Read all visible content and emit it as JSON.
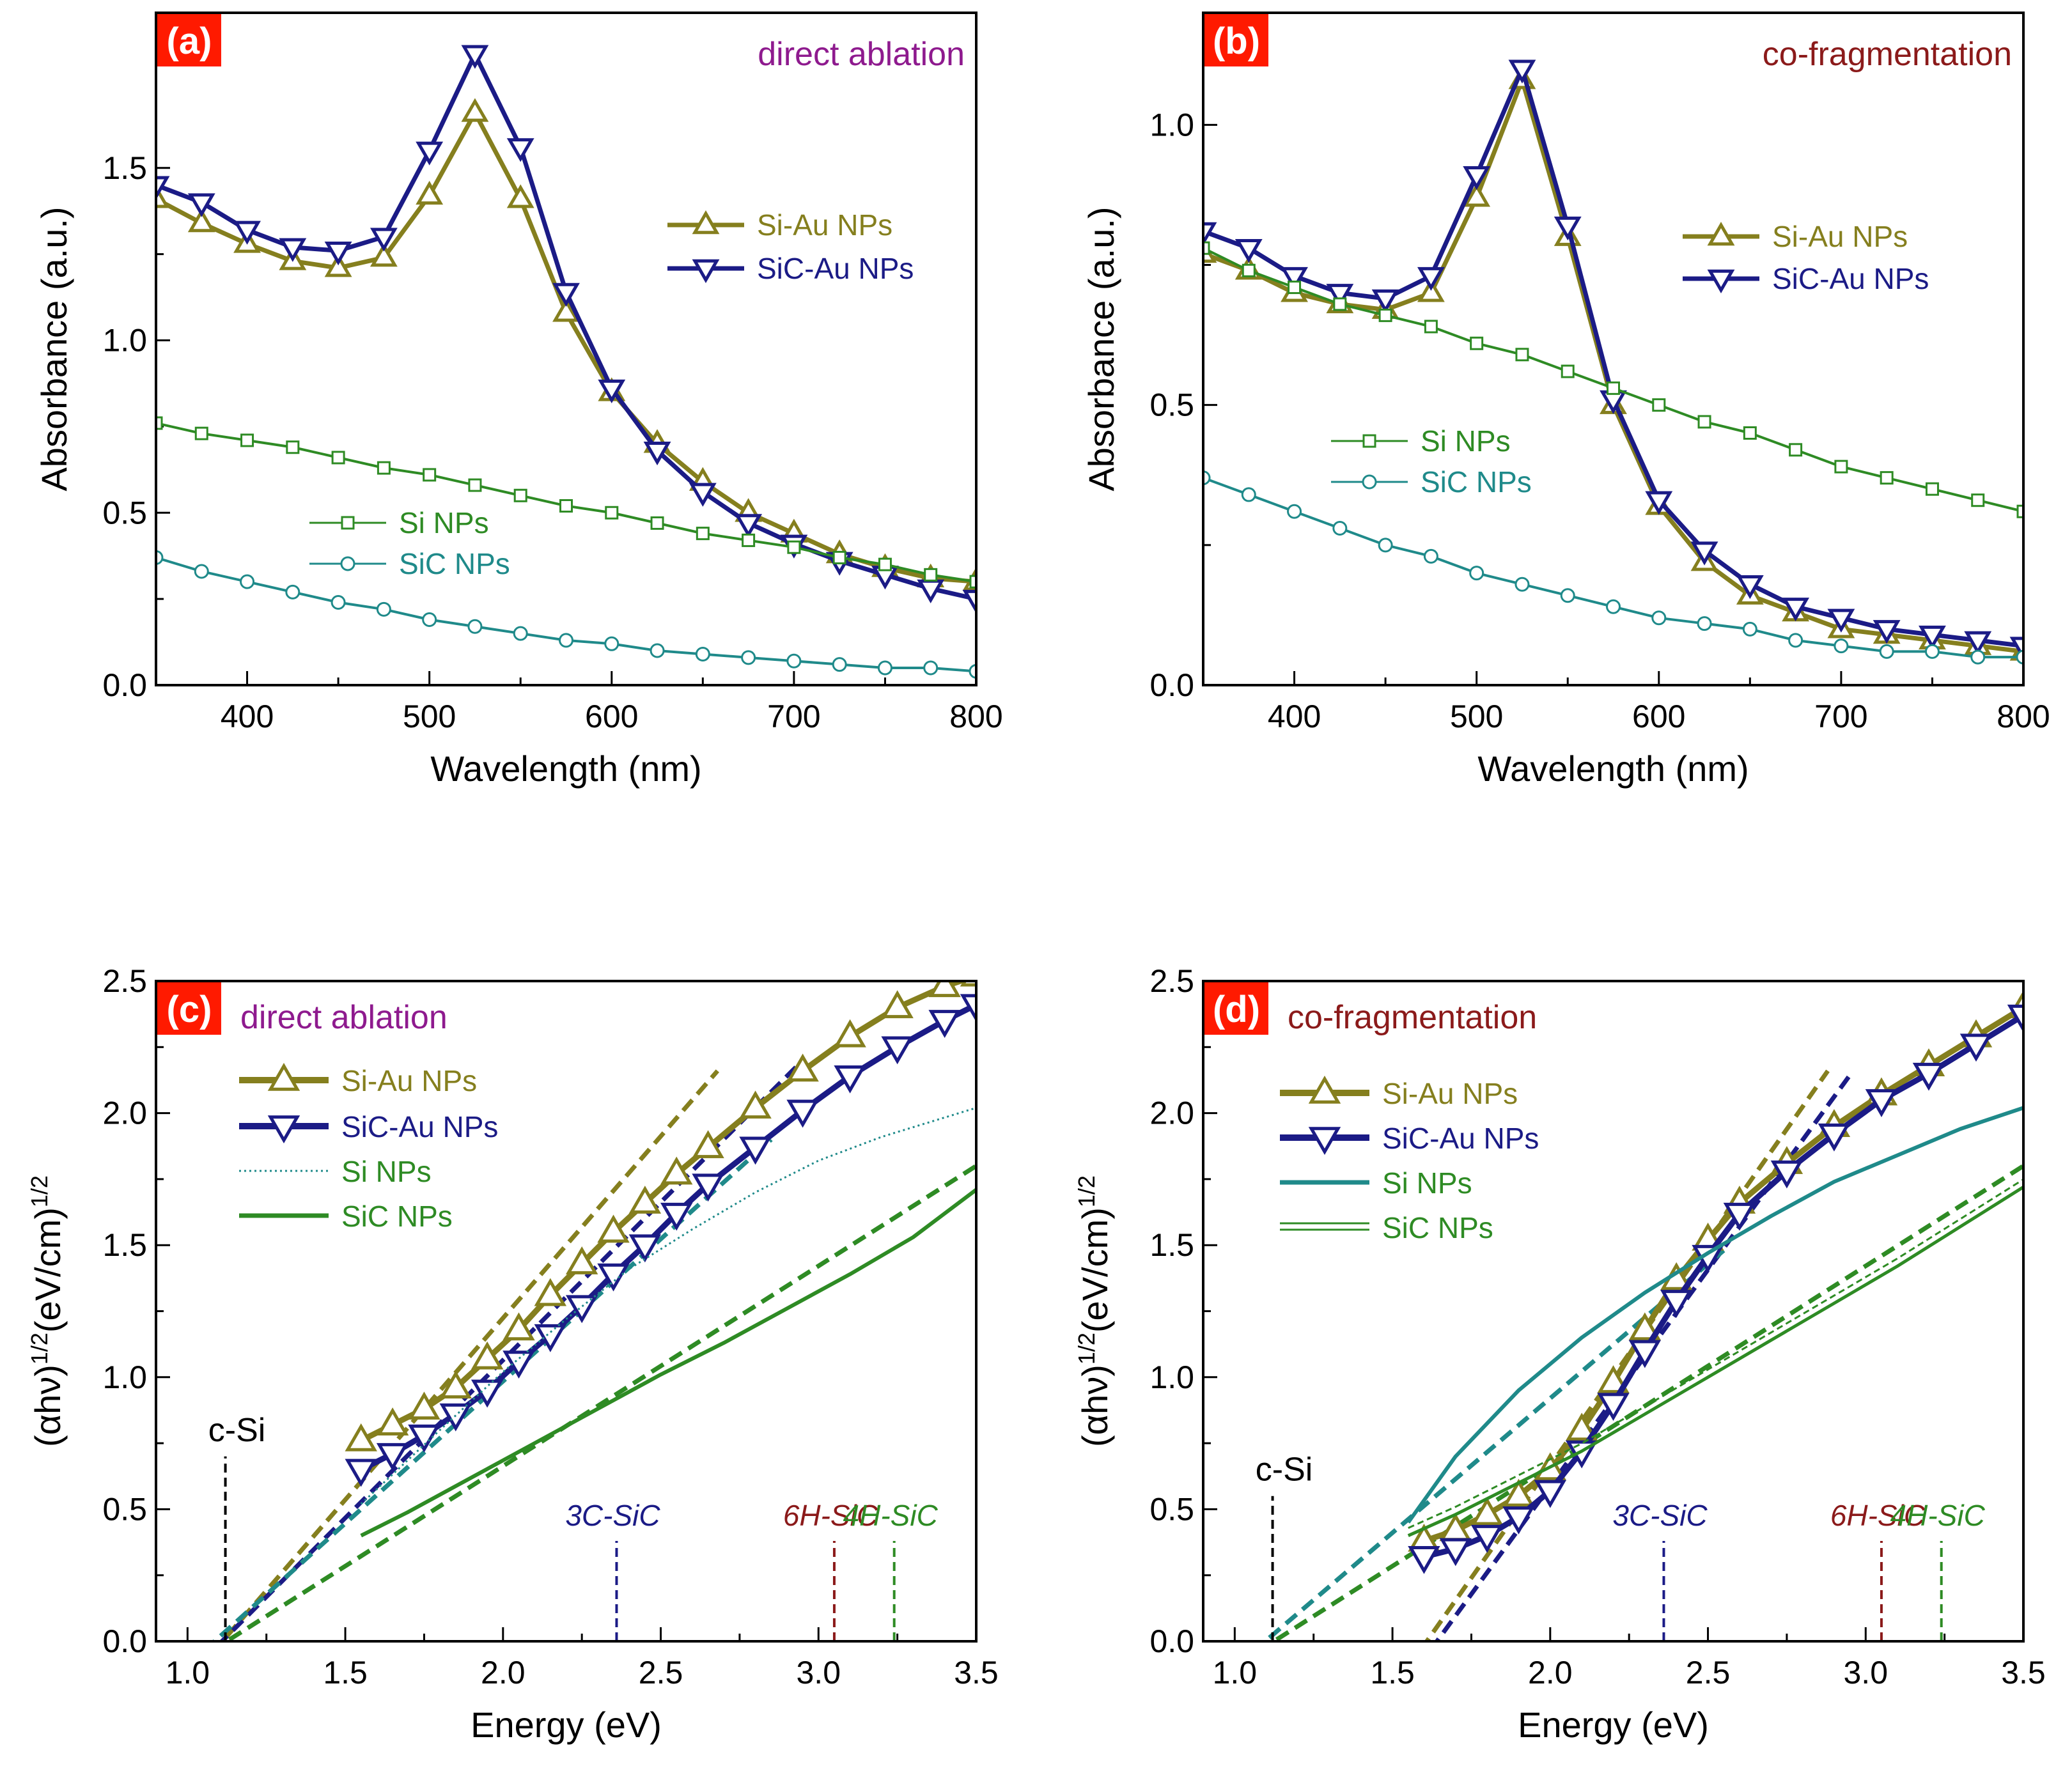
{
  "colors": {
    "si_au": "#857f1e",
    "sic_au": "#1b1b86",
    "si": "#2e8b24",
    "sic": "#1f8a8a",
    "label_bg": "#ff1a00",
    "direct": "#8e1a8e",
    "cofrag": "#8b1a1a",
    "c3": "#1b1b86",
    "h6": "#8b1a1a",
    "h4": "#2e8b24"
  },
  "chart_data": [
    {
      "id": "a",
      "type": "line",
      "panel_label": "(a)",
      "title": "direct ablation",
      "xlabel": "Wavelength (nm)",
      "ylabel": "Absorbance (a.u.)",
      "xlim": [
        350,
        800
      ],
      "ylim": [
        0,
        1.95
      ],
      "xticks": [
        400,
        500,
        600,
        700,
        800
      ],
      "xtick_labels": [
        "400",
        "500",
        "600",
        "700",
        "800"
      ],
      "yticks": [
        0,
        0.5,
        1.0,
        1.5
      ],
      "ytick_labels": [
        "0.0",
        "0.5",
        "1.0",
        "1.5"
      ],
      "legend": [
        {
          "name": "Si-Au NPs",
          "marker": "triangle-up",
          "color_key": "si_au"
        },
        {
          "name": "SiC-Au NPs",
          "marker": "triangle-down",
          "color_key": "sic_au"
        },
        {
          "name": "Si NPs",
          "marker": "square",
          "color_key": "si"
        },
        {
          "name": "SiC NPs",
          "marker": "circle",
          "color_key": "sic"
        }
      ],
      "series": [
        {
          "name": "Si-Au NPs",
          "marker": "triangle-up",
          "color_key": "si_au",
          "x": [
            350,
            375,
            400,
            425,
            450,
            475,
            500,
            525,
            550,
            575,
            600,
            625,
            650,
            675,
            700,
            725,
            750,
            775,
            800
          ],
          "y": [
            1.41,
            1.34,
            1.28,
            1.23,
            1.21,
            1.24,
            1.42,
            1.66,
            1.41,
            1.08,
            0.85,
            0.7,
            0.59,
            0.5,
            0.44,
            0.38,
            0.34,
            0.31,
            0.3
          ]
        },
        {
          "name": "SiC-Au NPs",
          "marker": "triangle-down",
          "color_key": "sic_au",
          "x": [
            350,
            375,
            400,
            425,
            450,
            475,
            500,
            525,
            550,
            575,
            600,
            625,
            650,
            675,
            700,
            725,
            750,
            775,
            800
          ],
          "y": [
            1.45,
            1.4,
            1.32,
            1.27,
            1.26,
            1.3,
            1.55,
            1.83,
            1.56,
            1.14,
            0.86,
            0.68,
            0.56,
            0.47,
            0.41,
            0.36,
            0.32,
            0.28,
            0.25
          ]
        },
        {
          "name": "Si NPs",
          "marker": "square",
          "color_key": "si",
          "x": [
            350,
            375,
            400,
            425,
            450,
            475,
            500,
            525,
            550,
            575,
            600,
            625,
            650,
            675,
            700,
            725,
            750,
            775,
            800
          ],
          "y": [
            0.76,
            0.73,
            0.71,
            0.69,
            0.66,
            0.63,
            0.61,
            0.58,
            0.55,
            0.52,
            0.5,
            0.47,
            0.44,
            0.42,
            0.4,
            0.37,
            0.35,
            0.32,
            0.3
          ]
        },
        {
          "name": "SiC NPs",
          "marker": "circle",
          "color_key": "sic",
          "x": [
            350,
            375,
            400,
            425,
            450,
            475,
            500,
            525,
            550,
            575,
            600,
            625,
            650,
            675,
            700,
            725,
            750,
            775,
            800
          ],
          "y": [
            0.37,
            0.33,
            0.3,
            0.27,
            0.24,
            0.22,
            0.19,
            0.17,
            0.15,
            0.13,
            0.12,
            0.1,
            0.09,
            0.08,
            0.07,
            0.06,
            0.05,
            0.05,
            0.04
          ]
        }
      ]
    },
    {
      "id": "b",
      "type": "line",
      "panel_label": "(b)",
      "title": "co-fragmentation",
      "xlabel": "Wavelength (nm)",
      "ylabel": "Absorbance (a.u.)",
      "xlim": [
        350,
        800
      ],
      "ylim": [
        0,
        1.2
      ],
      "xticks": [
        400,
        500,
        600,
        700,
        800
      ],
      "xtick_labels": [
        "400",
        "500",
        "600",
        "700",
        "800"
      ],
      "yticks": [
        0,
        0.5,
        1.0
      ],
      "ytick_labels": [
        "0.0",
        "0.5",
        "1.0"
      ],
      "legend": [
        {
          "name": "Si-Au NPs",
          "marker": "triangle-up",
          "color_key": "si_au"
        },
        {
          "name": "SiC-Au NPs",
          "marker": "triangle-down",
          "color_key": "sic_au"
        },
        {
          "name": "Si NPs",
          "marker": "square",
          "color_key": "si"
        },
        {
          "name": "SiC NPs",
          "marker": "circle",
          "color_key": "sic"
        }
      ],
      "series": [
        {
          "name": "Si-Au NPs",
          "marker": "triangle-up",
          "color_key": "si_au",
          "x": [
            350,
            375,
            400,
            425,
            450,
            475,
            500,
            525,
            550,
            575,
            600,
            625,
            650,
            675,
            700,
            725,
            750,
            775,
            800
          ],
          "y": [
            0.77,
            0.74,
            0.7,
            0.68,
            0.67,
            0.7,
            0.87,
            1.08,
            0.8,
            0.5,
            0.32,
            0.22,
            0.16,
            0.13,
            0.1,
            0.09,
            0.08,
            0.07,
            0.06
          ]
        },
        {
          "name": "SiC-Au NPs",
          "marker": "triangle-down",
          "color_key": "sic_au",
          "x": [
            350,
            375,
            400,
            425,
            450,
            475,
            500,
            525,
            550,
            575,
            600,
            625,
            650,
            675,
            700,
            725,
            750,
            775,
            800
          ],
          "y": [
            0.81,
            0.78,
            0.73,
            0.7,
            0.69,
            0.73,
            0.91,
            1.1,
            0.82,
            0.51,
            0.33,
            0.24,
            0.18,
            0.14,
            0.12,
            0.1,
            0.09,
            0.08,
            0.07
          ]
        },
        {
          "name": "Si NPs",
          "marker": "square",
          "color_key": "si",
          "x": [
            350,
            375,
            400,
            425,
            450,
            475,
            500,
            525,
            550,
            575,
            600,
            625,
            650,
            675,
            700,
            725,
            750,
            775,
            800
          ],
          "y": [
            0.78,
            0.74,
            0.71,
            0.68,
            0.66,
            0.64,
            0.61,
            0.59,
            0.56,
            0.53,
            0.5,
            0.47,
            0.45,
            0.42,
            0.39,
            0.37,
            0.35,
            0.33,
            0.31
          ]
        },
        {
          "name": "SiC NPs",
          "marker": "circle",
          "color_key": "sic",
          "x": [
            350,
            375,
            400,
            425,
            450,
            475,
            500,
            525,
            550,
            575,
            600,
            625,
            650,
            675,
            700,
            725,
            750,
            775,
            800
          ],
          "y": [
            0.37,
            0.34,
            0.31,
            0.28,
            0.25,
            0.23,
            0.2,
            0.18,
            0.16,
            0.14,
            0.12,
            0.11,
            0.1,
            0.08,
            0.07,
            0.06,
            0.06,
            0.05,
            0.05
          ]
        }
      ]
    },
    {
      "id": "c",
      "type": "line",
      "panel_label": "(c)",
      "title": "direct ablation",
      "xlabel": "Energy (eV)",
      "ylabel": "(αhν)1/2(eV/cm)1/2",
      "ylabel_parts": [
        "(αhν)",
        "1/2",
        "(eV/cm)",
        "1/2"
      ],
      "xlim": [
        0.9,
        3.5
      ],
      "ylim": [
        0,
        2.5
      ],
      "xticks": [
        1.0,
        1.5,
        2.0,
        2.5,
        3.0,
        3.5
      ],
      "xtick_labels": [
        "1.0",
        "1.5",
        "2.0",
        "2.5",
        "3.0",
        "3.5"
      ],
      "yticks": [
        0,
        0.5,
        1.0,
        1.5,
        2.0,
        2.5
      ],
      "ytick_labels": [
        "0.0",
        "0.5",
        "1.0",
        "1.5",
        "2.0",
        "2.5"
      ],
      "legend": [
        {
          "name": "Si-Au NPs",
          "style": "tri-up-line",
          "color_key": "si_au"
        },
        {
          "name": "SiC-Au NPs",
          "style": "tri-down-line",
          "color_key": "sic_au"
        },
        {
          "name": "Si NPs",
          "style": "dotted",
          "color_key": "sic"
        },
        {
          "name": "SiC NPs",
          "style": "solid",
          "color_key": "si"
        }
      ],
      "series": [
        {
          "name": "Si-Au NPs",
          "marker": "triangle-up",
          "color_key": "si_au",
          "x": [
            1.55,
            1.65,
            1.75,
            1.85,
            1.95,
            2.05,
            2.15,
            2.25,
            2.35,
            2.45,
            2.55,
            2.65,
            2.8,
            2.95,
            3.1,
            3.25,
            3.4,
            3.5
          ],
          "y": [
            0.76,
            0.82,
            0.88,
            0.96,
            1.07,
            1.18,
            1.31,
            1.43,
            1.55,
            1.66,
            1.77,
            1.87,
            2.02,
            2.16,
            2.29,
            2.4,
            2.48,
            2.52
          ]
        },
        {
          "name": "SiC-Au NPs",
          "marker": "triangle-down",
          "color_key": "sic_au",
          "x": [
            1.55,
            1.65,
            1.75,
            1.85,
            1.95,
            2.05,
            2.15,
            2.25,
            2.35,
            2.45,
            2.55,
            2.65,
            2.8,
            2.95,
            3.1,
            3.25,
            3.4,
            3.5
          ],
          "y": [
            0.65,
            0.71,
            0.78,
            0.86,
            0.95,
            1.06,
            1.16,
            1.27,
            1.39,
            1.5,
            1.62,
            1.73,
            1.87,
            2.01,
            2.14,
            2.25,
            2.35,
            2.41
          ]
        },
        {
          "name": "Si NPs",
          "style": "dotted",
          "color_key": "sic",
          "x": [
            1.55,
            1.8,
            2.0,
            2.2,
            2.4,
            2.6,
            2.8,
            3.0,
            3.2,
            3.5
          ],
          "y": [
            0.52,
            0.8,
            1.02,
            1.22,
            1.41,
            1.56,
            1.7,
            1.82,
            1.91,
            2.02
          ]
        },
        {
          "name": "SiC NPs",
          "style": "solid",
          "color_key": "si",
          "x": [
            1.55,
            1.7,
            1.9,
            2.1,
            2.3,
            2.5,
            2.7,
            2.9,
            3.1,
            3.3,
            3.5
          ],
          "y": [
            0.4,
            0.49,
            0.62,
            0.75,
            0.88,
            1.01,
            1.13,
            1.26,
            1.39,
            1.53,
            1.71
          ]
        }
      ],
      "fits": [
        {
          "color_key": "si_au",
          "x": [
            0.9,
            2.68
          ],
          "y": [
            -0.29,
            2.16
          ]
        },
        {
          "color_key": "sic_au",
          "x": [
            0.9,
            2.95
          ],
          "y": [
            -0.25,
            2.2
          ]
        },
        {
          "color_key": "sic",
          "x": [
            0.9,
            2.85
          ],
          "y": [
            -0.2,
            1.9
          ]
        },
        {
          "color_key": "si",
          "x": [
            0.9,
            3.5
          ],
          "y": [
            -0.17,
            1.8
          ]
        }
      ],
      "ref_lines": [
        {
          "label": "c-Si",
          "x": 1.12,
          "y_top": 0.7,
          "color_key": "ann_black"
        },
        {
          "label": "3C-SiC",
          "x": 2.36,
          "y_top": 0.38,
          "color_key": "c3"
        },
        {
          "label": "6H-SiC",
          "x": 3.05,
          "y_top": 0.38,
          "color_key": "h6"
        },
        {
          "label": "4H-SiC",
          "x": 3.24,
          "y_top": 0.38,
          "color_key": "h4"
        }
      ]
    },
    {
      "id": "d",
      "type": "line",
      "panel_label": "(d)",
      "title": "co-fragmentation",
      "xlabel": "Energy (eV)",
      "ylabel": "(αhν)1/2(eV/cm)1/2",
      "ylabel_parts": [
        "(αhν)",
        "1/2",
        "(eV/cm)",
        "1/2"
      ],
      "xlim": [
        0.9,
        3.5
      ],
      "ylim": [
        0,
        2.5
      ],
      "xticks": [
        1.0,
        1.5,
        2.0,
        2.5,
        3.0,
        3.5
      ],
      "xtick_labels": [
        "1.0",
        "1.5",
        "2.0",
        "2.5",
        "3.0",
        "3.5"
      ],
      "yticks": [
        0,
        0.5,
        1.0,
        1.5,
        2.0,
        2.5
      ],
      "ytick_labels": [
        "0.0",
        "0.5",
        "1.0",
        "1.5",
        "2.0",
        "2.5"
      ],
      "legend": [
        {
          "name": "Si-Au NPs",
          "style": "tri-up-line",
          "color_key": "si_au"
        },
        {
          "name": "SiC-Au NPs",
          "style": "tri-down-line",
          "color_key": "sic_au"
        },
        {
          "name": "Si NPs",
          "style": "solid",
          "color_key": "sic"
        },
        {
          "name": "SiC NPs",
          "style": "hatched",
          "color_key": "si"
        }
      ],
      "series": [
        {
          "name": "Si-Au NPs",
          "marker": "triangle-up",
          "color_key": "si_au",
          "x": [
            1.6,
            1.7,
            1.8,
            1.9,
            2.0,
            2.1,
            2.2,
            2.3,
            2.4,
            2.5,
            2.6,
            2.75,
            2.9,
            3.05,
            3.2,
            3.35,
            3.5
          ],
          "y": [
            0.38,
            0.42,
            0.48,
            0.55,
            0.65,
            0.8,
            0.98,
            1.18,
            1.37,
            1.52,
            1.66,
            1.81,
            1.95,
            2.07,
            2.18,
            2.29,
            2.4
          ]
        },
        {
          "name": "SiC-Au NPs",
          "marker": "triangle-down",
          "color_key": "sic_au",
          "x": [
            1.6,
            1.7,
            1.8,
            1.9,
            2.0,
            2.1,
            2.2,
            2.3,
            2.4,
            2.5,
            2.6,
            2.75,
            2.9,
            3.05,
            3.2,
            3.35,
            3.5
          ],
          "y": [
            0.32,
            0.35,
            0.4,
            0.47,
            0.57,
            0.72,
            0.9,
            1.1,
            1.29,
            1.46,
            1.62,
            1.78,
            1.92,
            2.05,
            2.15,
            2.26,
            2.37
          ]
        },
        {
          "name": "Si NPs",
          "style": "solid",
          "color_key": "sic",
          "x": [
            1.55,
            1.7,
            1.9,
            2.1,
            2.3,
            2.5,
            2.7,
            2.9,
            3.1,
            3.3,
            3.5
          ],
          "y": [
            0.45,
            0.7,
            0.95,
            1.15,
            1.32,
            1.47,
            1.61,
            1.74,
            1.84,
            1.94,
            2.02
          ]
        },
        {
          "name": "SiC NPs",
          "style": "hatched",
          "color_key": "si",
          "x": [
            1.55,
            1.7,
            1.9,
            2.1,
            2.3,
            2.5,
            2.7,
            2.9,
            3.1,
            3.3,
            3.5
          ],
          "y": [
            0.4,
            0.48,
            0.6,
            0.72,
            0.86,
            1.0,
            1.14,
            1.28,
            1.42,
            1.57,
            1.72
          ]
        }
      ],
      "fits": [
        {
          "color_key": "si_au",
          "x": [
            1.55,
            2.88
          ],
          "y": [
            -0.1,
            2.16
          ]
        },
        {
          "color_key": "sic_au",
          "x": [
            1.58,
            2.96
          ],
          "y": [
            -0.1,
            2.16
          ]
        },
        {
          "color_key": "sic",
          "x": [
            0.9,
            2.55
          ],
          "y": [
            -0.2,
            1.48
          ]
        },
        {
          "color_key": "si",
          "x": [
            0.9,
            3.5
          ],
          "y": [
            -0.17,
            1.8
          ]
        }
      ],
      "ref_lines": [
        {
          "label": "c-Si",
          "x": 1.12,
          "y_top": 0.55,
          "color_key": "ann_black"
        },
        {
          "label": "3C-SiC",
          "x": 2.36,
          "y_top": 0.38,
          "color_key": "c3"
        },
        {
          "label": "6H-SiC",
          "x": 3.05,
          "y_top": 0.38,
          "color_key": "h6"
        },
        {
          "label": "4H-SiC",
          "x": 3.24,
          "y_top": 0.38,
          "color_key": "h4"
        }
      ]
    }
  ]
}
